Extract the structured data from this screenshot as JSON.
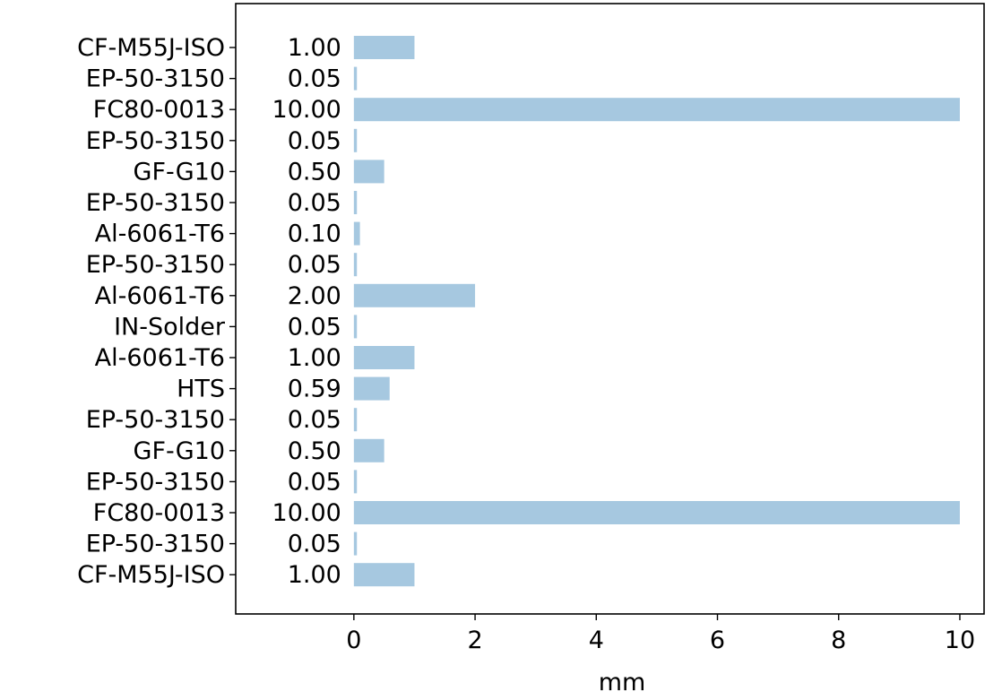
{
  "chart_data": {
    "type": "bar",
    "orientation": "horizontal",
    "title": "",
    "xlabel": "mm",
    "ylabel": "",
    "xlim": [
      -1.95,
      10.4
    ],
    "xticks": [
      0,
      2,
      4,
      6,
      8,
      10
    ],
    "grid": false,
    "bar_color": "#a6c8e0",
    "categories": [
      "CF-M55J-ISO",
      "EP-50-3150",
      "FC80-0013",
      "EP-50-3150",
      "GF-G10",
      "EP-50-3150",
      "Al-6061-T6",
      "EP-50-3150",
      "Al-6061-T6",
      "IN-Solder",
      "Al-6061-T6",
      "HTS",
      "EP-50-3150",
      "GF-G10",
      "EP-50-3150",
      "FC80-0013",
      "EP-50-3150",
      "CF-M55J-ISO"
    ],
    "values": [
      1.0,
      0.05,
      10.0,
      0.05,
      0.5,
      0.05,
      0.1,
      0.05,
      2.0,
      0.05,
      1.0,
      0.59,
      0.05,
      0.5,
      0.05,
      10.0,
      0.05,
      1.0
    ],
    "value_labels": [
      "1.00",
      "0.05",
      "10.00",
      "0.05",
      "0.50",
      "0.05",
      "0.10",
      "0.05",
      "2.00",
      "0.05",
      "1.00",
      "0.59",
      "0.05",
      "0.50",
      "0.05",
      "10.00",
      "0.05",
      "1.00"
    ]
  }
}
